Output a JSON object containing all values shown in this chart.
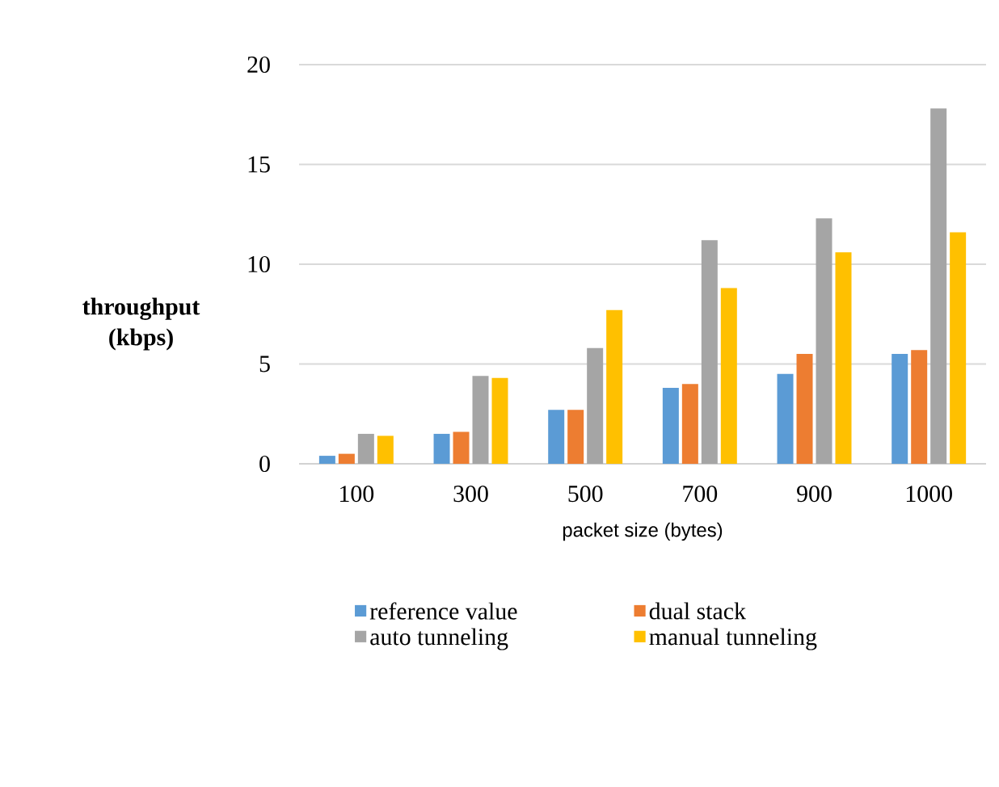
{
  "chart_data": {
    "type": "bar",
    "xlabel": "packet size (bytes)",
    "ylabel": "throughput (kbps)",
    "categories": [
      "100",
      "300",
      "500",
      "700",
      "900",
      "1000"
    ],
    "series": [
      {
        "name": "reference value",
        "color": "#5b9bd5",
        "values": [
          0.4,
          1.5,
          2.7,
          3.8,
          4.5,
          5.5
        ]
      },
      {
        "name": "dual stack",
        "color": "#ed7d31",
        "values": [
          0.5,
          1.6,
          2.7,
          4.0,
          5.5,
          5.7
        ]
      },
      {
        "name": "auto tunneling",
        "color": "#a5a5a5",
        "values": [
          1.5,
          4.4,
          5.8,
          11.2,
          12.3,
          17.8
        ]
      },
      {
        "name": "manual tunneling",
        "color": "#ffc000",
        "values": [
          1.4,
          4.3,
          7.7,
          8.8,
          10.6,
          11.6
        ]
      }
    ],
    "ylim": [
      0,
      20
    ],
    "yticks": [
      0,
      5,
      10,
      15,
      20
    ],
    "grid": "y",
    "legend": "bottom"
  }
}
